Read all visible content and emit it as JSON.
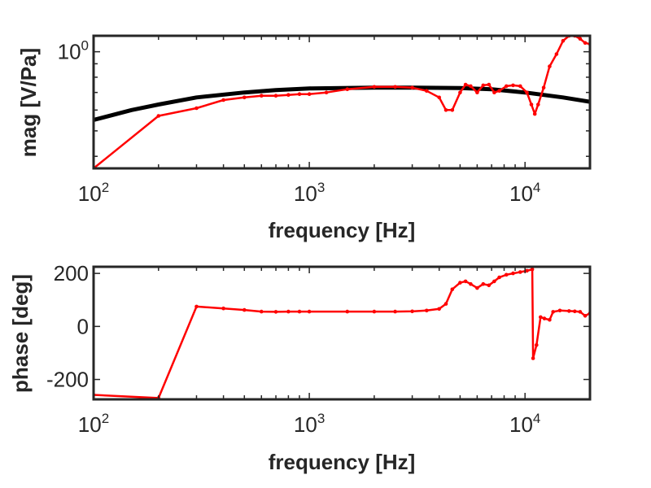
{
  "colors": {
    "axis": "#262626",
    "measured": "#ff0000",
    "model": "#000000"
  },
  "chart_data": [
    {
      "type": "line",
      "title": "",
      "xlabel": "frequency [Hz]",
      "ylabel": "mag [V/Pa]",
      "xscale": "log",
      "yscale": "log",
      "xlim": [
        100,
        20000
      ],
      "ylim": [
        0.36,
        1.15
      ],
      "x_ticks": [
        {
          "base": "10",
          "exp": "2",
          "value": 100
        },
        {
          "base": "10",
          "exp": "3",
          "value": 1000
        },
        {
          "base": "10",
          "exp": "4",
          "value": 10000
        }
      ],
      "y_ticks": [
        {
          "base": "10",
          "exp": "0",
          "value": 1
        }
      ],
      "grid": false,
      "series": [
        {
          "role": "model",
          "color": "#000000",
          "marker": "none",
          "points": [
            [
              100,
              0.55
            ],
            [
              150,
              0.6
            ],
            [
              200,
              0.63
            ],
            [
              300,
              0.67
            ],
            [
              500,
              0.7
            ],
            [
              700,
              0.715
            ],
            [
              1000,
              0.725
            ],
            [
              2000,
              0.73
            ],
            [
              3000,
              0.73
            ],
            [
              5000,
              0.728
            ],
            [
              7000,
              0.72
            ],
            [
              10000,
              0.7
            ],
            [
              15000,
              0.67
            ],
            [
              20000,
              0.645
            ]
          ]
        },
        {
          "role": "measured",
          "color": "#ff0000",
          "marker": "dot",
          "points": [
            [
              100,
              0.36
            ],
            [
              200,
              0.57
            ],
            [
              300,
              0.61
            ],
            [
              400,
              0.655
            ],
            [
              500,
              0.67
            ],
            [
              600,
              0.68
            ],
            [
              700,
              0.68
            ],
            [
              800,
              0.685
            ],
            [
              900,
              0.69
            ],
            [
              1000,
              0.69
            ],
            [
              1200,
              0.7
            ],
            [
              1500,
              0.72
            ],
            [
              2000,
              0.735
            ],
            [
              2500,
              0.735
            ],
            [
              3000,
              0.73
            ],
            [
              3500,
              0.71
            ],
            [
              4000,
              0.67
            ],
            [
              4300,
              0.6
            ],
            [
              4600,
              0.6
            ],
            [
              5000,
              0.7
            ],
            [
              5300,
              0.75
            ],
            [
              5600,
              0.74
            ],
            [
              6000,
              0.7
            ],
            [
              6400,
              0.745
            ],
            [
              6800,
              0.75
            ],
            [
              7200,
              0.7
            ],
            [
              7600,
              0.71
            ],
            [
              8200,
              0.74
            ],
            [
              8800,
              0.745
            ],
            [
              9500,
              0.74
            ],
            [
              10200,
              0.7
            ],
            [
              10700,
              0.63
            ],
            [
              11100,
              0.58
            ],
            [
              11500,
              0.63
            ],
            [
              12200,
              0.73
            ],
            [
              13000,
              0.88
            ],
            [
              14000,
              0.98
            ],
            [
              15000,
              1.1
            ],
            [
              16000,
              1.15
            ],
            [
              17000,
              1.15
            ],
            [
              18000,
              1.12
            ],
            [
              19000,
              1.08
            ],
            [
              20000,
              1.07
            ]
          ]
        }
      ]
    },
    {
      "type": "line",
      "title": "",
      "xlabel": "frequency [Hz]",
      "ylabel": "phase [deg]",
      "xscale": "log",
      "xlim": [
        100,
        20000
      ],
      "ylim": [
        -275,
        225
      ],
      "x_ticks": [
        {
          "base": "10",
          "exp": "2",
          "value": 100
        },
        {
          "base": "10",
          "exp": "3",
          "value": 1000
        },
        {
          "base": "10",
          "exp": "4",
          "value": 10000
        }
      ],
      "y_ticks": [
        {
          "label": "200",
          "value": 200
        },
        {
          "label": "0",
          "value": 0
        },
        {
          "label": "-200",
          "value": -200
        }
      ],
      "grid": false,
      "series": [
        {
          "role": "measured",
          "color": "#ff0000",
          "marker": "dot",
          "points": [
            [
              100,
              -258
            ],
            [
              200,
              -270
            ],
            [
              300,
              75
            ],
            [
              400,
              68
            ],
            [
              500,
              62
            ],
            [
              600,
              56
            ],
            [
              700,
              55
            ],
            [
              800,
              56
            ],
            [
              900,
              56
            ],
            [
              1000,
              56
            ],
            [
              1500,
              56
            ],
            [
              2000,
              56
            ],
            [
              2500,
              56
            ],
            [
              3000,
              57
            ],
            [
              3500,
              60
            ],
            [
              4000,
              66
            ],
            [
              4300,
              85
            ],
            [
              4600,
              140
            ],
            [
              5000,
              165
            ],
            [
              5300,
              170
            ],
            [
              5600,
              160
            ],
            [
              6000,
              145
            ],
            [
              6400,
              160
            ],
            [
              6800,
              155
            ],
            [
              7200,
              170
            ],
            [
              7600,
              185
            ],
            [
              8200,
              195
            ],
            [
              8800,
              200
            ],
            [
              9500,
              205
            ],
            [
              10200,
              210
            ],
            [
              10800,
              215
            ],
            [
              10900,
              -120
            ],
            [
              11300,
              -70
            ],
            [
              11800,
              35
            ],
            [
              12300,
              30
            ],
            [
              13000,
              25
            ],
            [
              13500,
              55
            ],
            [
              14500,
              60
            ],
            [
              16000,
              58
            ],
            [
              17000,
              57
            ],
            [
              18000,
              55
            ],
            [
              19000,
              40
            ],
            [
              20000,
              50
            ]
          ]
        }
      ]
    }
  ]
}
